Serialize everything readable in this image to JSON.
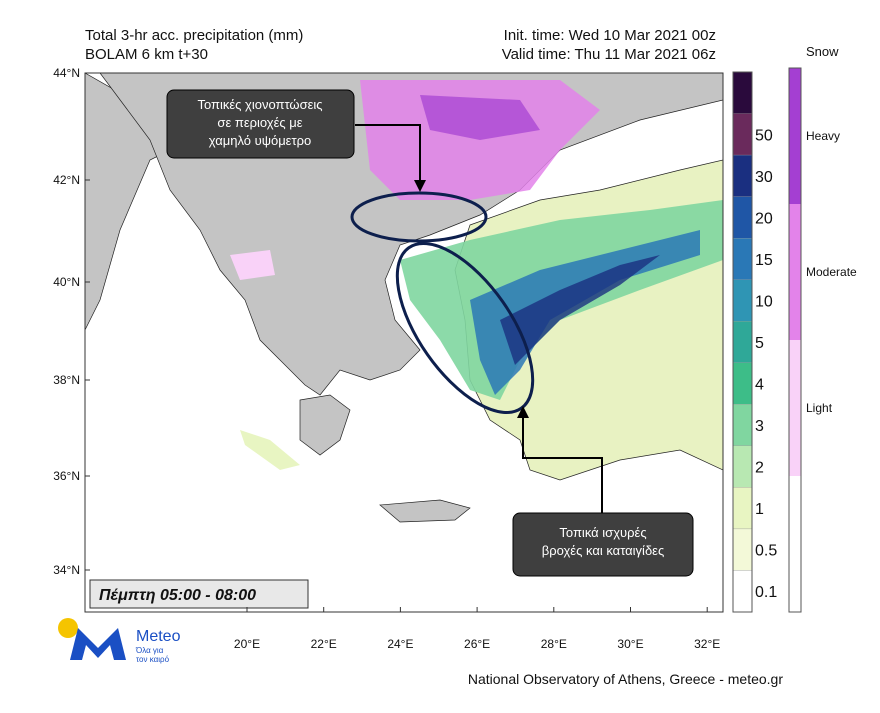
{
  "header": {
    "title": "Total 3-hr acc. precipitation (mm)",
    "model": "BOLAM 6 km t+30",
    "init_time": "Init. time: Wed 10 Mar 2021 00z",
    "valid_time": "Valid time: Thu 11 Mar 2021 06z"
  },
  "map": {
    "lat_labels": [
      "44°N",
      "42°N",
      "40°N",
      "38°N",
      "36°N",
      "34°N"
    ],
    "lon_labels": [
      "20°E",
      "22°E",
      "24°E",
      "26°E",
      "28°E",
      "30°E",
      "32°E"
    ]
  },
  "precip_legend": {
    "top_color": "#2a0a3c",
    "levels": [
      {
        "label": "50",
        "color": "#6a2a5c"
      },
      {
        "label": "30",
        "color": "#1a2f80"
      },
      {
        "label": "20",
        "color": "#1f56a6"
      },
      {
        "label": "15",
        "color": "#2a78b6"
      },
      {
        "label": "10",
        "color": "#2f95b4"
      },
      {
        "label": "5",
        "color": "#2fa898"
      },
      {
        "label": "4",
        "color": "#3dbd88"
      },
      {
        "label": "3",
        "color": "#80d6a0"
      },
      {
        "label": "2",
        "color": "#b8e8b2"
      },
      {
        "label": "1",
        "color": "#e8f5c2"
      },
      {
        "label": "0.5",
        "color": "#f3f9d8"
      },
      {
        "label": "0.1",
        "color": "#ffffff"
      }
    ]
  },
  "snow_legend": {
    "title": "Snow",
    "levels": [
      {
        "label": "Heavy",
        "color": "#a43fd2"
      },
      {
        "label": "Moderate",
        "color": "#e383ea"
      },
      {
        "label": "Light",
        "color": "#f9d2f8"
      }
    ],
    "bottom_color": "#ffffff"
  },
  "annotations": [
    [
      "Τοπικές χιονοπτώσεις",
      "σε περιοχές με",
      "χαμηλό υψόμετρο"
    ],
    [
      "Τοπικά ισχυρές",
      "βροχές και καταιγίδες"
    ]
  ],
  "date_box": "Πέμπτη 05:00 - 08:00",
  "logo": {
    "name": "Meteo",
    "tagline": [
      "Όλα για",
      "τον καιρό"
    ]
  },
  "footer": "National Observatory of Athens, Greece - meteo.gr"
}
